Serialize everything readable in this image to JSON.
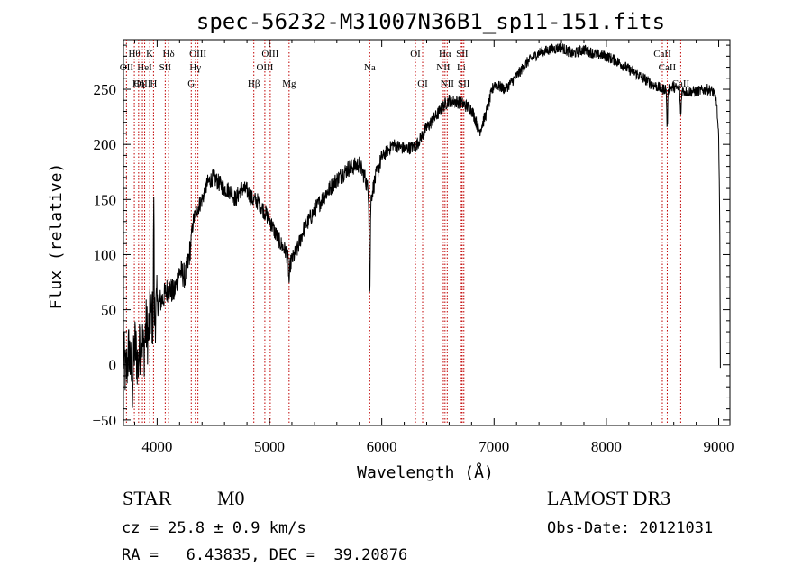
{
  "chart_data": {
    "type": "line",
    "title": "spec-56232-M31007N36B1_sp11-151.fits",
    "xlabel": "Wavelength (Å)",
    "ylabel": "Flux (relative)",
    "xlim": [
      3700,
      9100
    ],
    "ylim": [
      -55,
      295
    ],
    "x_ticks": [
      4000,
      5000,
      6000,
      7000,
      8000,
      9000
    ],
    "x_tick_labels": [
      "4000",
      "5000",
      "6000",
      "7000",
      "8000",
      "9000"
    ],
    "y_ticks": [
      -50,
      0,
      50,
      100,
      150,
      200,
      250
    ],
    "y_tick_labels": [
      "−50",
      "0",
      "50",
      "100",
      "150",
      "200",
      "250"
    ],
    "spectrum_anchors": [
      [
        3700,
        10
      ],
      [
        3720,
        -10
      ],
      [
        3750,
        15
      ],
      [
        3780,
        -20
      ],
      [
        3800,
        20
      ],
      [
        3830,
        0
      ],
      [
        3860,
        30
      ],
      [
        3880,
        10
      ],
      [
        3900,
        35
      ],
      [
        3920,
        25
      ],
      [
        3940,
        45
      ],
      [
        3970,
        40
      ],
      [
        4000,
        55
      ],
      [
        4050,
        60
      ],
      [
        4100,
        70
      ],
      [
        4150,
        65
      ],
      [
        4200,
        85
      ],
      [
        4250,
        80
      ],
      [
        4280,
        95
      ],
      [
        4300,
        110
      ],
      [
        4320,
        130
      ],
      [
        4350,
        140
      ],
      [
        4400,
        150
      ],
      [
        4450,
        165
      ],
      [
        4500,
        170
      ],
      [
        4550,
        165
      ],
      [
        4600,
        160
      ],
      [
        4650,
        158
      ],
      [
        4700,
        150
      ],
      [
        4750,
        160
      ],
      [
        4800,
        158
      ],
      [
        4850,
        150
      ],
      [
        4900,
        148
      ],
      [
        4950,
        140
      ],
      [
        5000,
        132
      ],
      [
        5050,
        120
      ],
      [
        5100,
        110
      ],
      [
        5150,
        102
      ],
      [
        5180,
        90
      ],
      [
        5200,
        95
      ],
      [
        5250,
        105
      ],
      [
        5300,
        122
      ],
      [
        5400,
        140
      ],
      [
        5500,
        155
      ],
      [
        5600,
        168
      ],
      [
        5700,
        178
      ],
      [
        5800,
        182
      ],
      [
        5850,
        170
      ],
      [
        5900,
        150
      ],
      [
        5950,
        172
      ],
      [
        6000,
        188
      ],
      [
        6100,
        200
      ],
      [
        6200,
        196
      ],
      [
        6300,
        198
      ],
      [
        6400,
        215
      ],
      [
        6500,
        228
      ],
      [
        6550,
        235
      ],
      [
        6600,
        240
      ],
      [
        6700,
        238
      ],
      [
        6800,
        232
      ],
      [
        6870,
        212
      ],
      [
        6920,
        225
      ],
      [
        7000,
        255
      ],
      [
        7100,
        250
      ],
      [
        7200,
        262
      ],
      [
        7300,
        275
      ],
      [
        7400,
        283
      ],
      [
        7500,
        286
      ],
      [
        7600,
        288
      ],
      [
        7700,
        282
      ],
      [
        7800,
        286
      ],
      [
        7900,
        282
      ],
      [
        8000,
        280
      ],
      [
        8100,
        275
      ],
      [
        8200,
        268
      ],
      [
        8300,
        262
      ],
      [
        8400,
        255
      ],
      [
        8500,
        250
      ],
      [
        8600,
        252
      ],
      [
        8700,
        248
      ],
      [
        8800,
        248
      ],
      [
        8900,
        250
      ],
      [
        8950,
        248
      ],
      [
        8980,
        240
      ],
      [
        9000,
        205
      ],
      [
        9010,
        120
      ],
      [
        9015,
        0
      ]
    ],
    "absorption_features": [
      {
        "label": "Na",
        "x": 5893,
        "y": 65
      },
      {
        "label": "CaII",
        "x": 8542,
        "y": 215
      },
      {
        "label": "CaII",
        "x": 8662,
        "y": 225
      },
      {
        "label": "Mg",
        "x": 5175,
        "y": 75
      }
    ],
    "emission_features": [
      {
        "label": "Hbeta-like spike",
        "x": 3970,
        "y": 163
      }
    ],
    "line_markers": [
      {
        "label": "Hθ",
        "x": 3797,
        "row": 1
      },
      {
        "label": "K",
        "x": 3934,
        "row": 1
      },
      {
        "label": "Hδ",
        "x": 4102,
        "row": 1
      },
      {
        "label": "OIII",
        "x": 4363,
        "row": 1
      },
      {
        "label": "OIII",
        "x": 5007,
        "row": 1
      },
      {
        "label": "OI",
        "x": 6300,
        "row": 1
      },
      {
        "label": "Hα",
        "x": 6563,
        "row": 1
      },
      {
        "label": "SII",
        "x": 6716,
        "row": 1
      },
      {
        "label": "CaII",
        "x": 8498,
        "row": 1
      },
      {
        "label": "OII",
        "x": 3727,
        "row": 2
      },
      {
        "label": "HeI",
        "x": 3889,
        "row": 2
      },
      {
        "label": "SII",
        "x": 4072,
        "row": 2
      },
      {
        "label": "Hγ",
        "x": 4340,
        "row": 2
      },
      {
        "label": "OIII",
        "x": 4959,
        "row": 2
      },
      {
        "label": "Na",
        "x": 5893,
        "row": 2
      },
      {
        "label": "NII",
        "x": 6548,
        "row": 2
      },
      {
        "label": "Li",
        "x": 6708,
        "row": 2
      },
      {
        "label": "CaII",
        "x": 8542,
        "row": 2
      },
      {
        "label": "OIII",
        "x": 3869,
        "row": 3
      },
      {
        "label": "Hη",
        "x": 3835,
        "row": 3
      },
      {
        "label": "H",
        "x": 3968,
        "row": 3
      },
      {
        "label": "G",
        "x": 4304,
        "row": 3
      },
      {
        "label": "Hβ",
        "x": 4861,
        "row": 3
      },
      {
        "label": "Mg",
        "x": 5175,
        "row": 3
      },
      {
        "label": "OI",
        "x": 6364,
        "row": 3
      },
      {
        "label": "NII",
        "x": 6583,
        "row": 3
      },
      {
        "label": "SII",
        "x": 6731,
        "row": 3
      },
      {
        "label": "CaII",
        "x": 8662,
        "row": 3
      }
    ]
  },
  "info": {
    "class": "STAR",
    "subclass": "M0",
    "survey": "LAMOST DR3",
    "cz": "cz = 25.8 ± 0.9 km/s",
    "obs_date": "Obs-Date: 20121031",
    "coords": "RA =   6.43835, DEC =  39.20876"
  }
}
